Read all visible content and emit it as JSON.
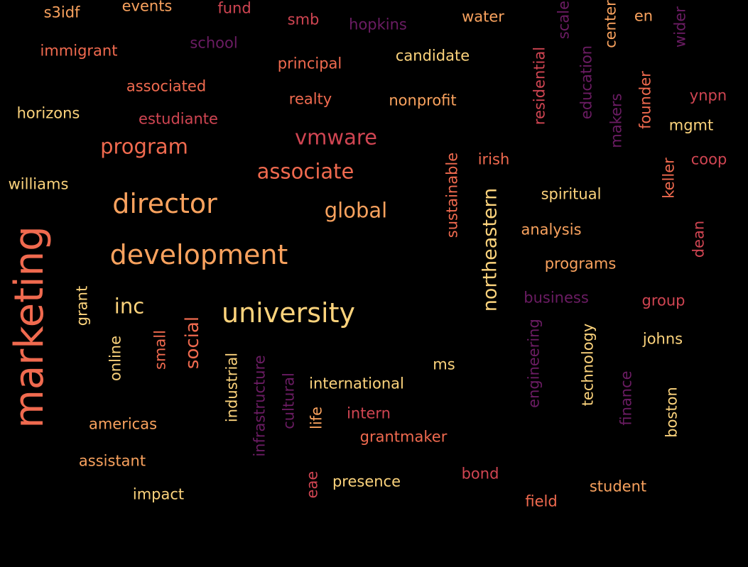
{
  "colors": {
    "background": "#000000",
    "c1": "#fcd37c",
    "c2": "#f9a25e",
    "c3": "#f06a4f",
    "c4": "#d04552",
    "c5": "#a12c5f",
    "c6": "#6b1c63"
  },
  "words": [
    {
      "text": "marketing",
      "color": "c3",
      "vertical": true
    },
    {
      "text": "development",
      "color": "c2",
      "vertical": false
    },
    {
      "text": "university",
      "color": "c1",
      "vertical": false
    },
    {
      "text": "director",
      "color": "c2",
      "vertical": false
    },
    {
      "text": "northeastern",
      "color": "c1",
      "vertical": true
    },
    {
      "text": "global",
      "color": "c2",
      "vertical": false
    },
    {
      "text": "associate",
      "color": "c3",
      "vertical": false
    },
    {
      "text": "program",
      "color": "c3",
      "vertical": false
    },
    {
      "text": "vmware",
      "color": "c4",
      "vertical": false
    },
    {
      "text": "inc",
      "color": "c1",
      "vertical": false
    },
    {
      "text": "social",
      "color": "c3",
      "vertical": true
    },
    {
      "text": "s3idf",
      "color": "c2",
      "vertical": false
    },
    {
      "text": "events",
      "color": "c2",
      "vertical": false
    },
    {
      "text": "fund",
      "color": "c4",
      "vertical": false
    },
    {
      "text": "smb",
      "color": "c4",
      "vertical": false
    },
    {
      "text": "hopkins",
      "color": "c6",
      "vertical": false
    },
    {
      "text": "water",
      "color": "c2",
      "vertical": false
    },
    {
      "text": "scale",
      "color": "c6",
      "vertical": true
    },
    {
      "text": "center",
      "color": "c2",
      "vertical": true
    },
    {
      "text": "en",
      "color": "c2",
      "vertical": false
    },
    {
      "text": "wider",
      "color": "c6",
      "vertical": true
    },
    {
      "text": "immigrant",
      "color": "c3",
      "vertical": false
    },
    {
      "text": "school",
      "color": "c6",
      "vertical": false
    },
    {
      "text": "principal",
      "color": "c3",
      "vertical": false
    },
    {
      "text": "candidate",
      "color": "c1",
      "vertical": false
    },
    {
      "text": "residential",
      "color": "c4",
      "vertical": true
    },
    {
      "text": "education",
      "color": "c6",
      "vertical": true
    },
    {
      "text": "founder",
      "color": "c3",
      "vertical": true
    },
    {
      "text": "ynpn",
      "color": "c4",
      "vertical": false
    },
    {
      "text": "associated",
      "color": "c3",
      "vertical": false
    },
    {
      "text": "realty",
      "color": "c3",
      "vertical": false
    },
    {
      "text": "nonprofit",
      "color": "c2",
      "vertical": false
    },
    {
      "text": "makers",
      "color": "c6",
      "vertical": true
    },
    {
      "text": "mgmt",
      "color": "c1",
      "vertical": false
    },
    {
      "text": "horizons",
      "color": "c1",
      "vertical": false
    },
    {
      "text": "estudiante",
      "color": "c4",
      "vertical": false
    },
    {
      "text": "sustainable",
      "color": "c3",
      "vertical": true
    },
    {
      "text": "irish",
      "color": "c3",
      "vertical": false
    },
    {
      "text": "coop",
      "color": "c4",
      "vertical": false
    },
    {
      "text": "keller",
      "color": "c3",
      "vertical": true
    },
    {
      "text": "williams",
      "color": "c1",
      "vertical": false
    },
    {
      "text": "spiritual",
      "color": "c1",
      "vertical": false
    },
    {
      "text": "analysis",
      "color": "c2",
      "vertical": false
    },
    {
      "text": "dean",
      "color": "c4",
      "vertical": true
    },
    {
      "text": "programs",
      "color": "c2",
      "vertical": false
    },
    {
      "text": "business",
      "color": "c6",
      "vertical": false
    },
    {
      "text": "group",
      "color": "c4",
      "vertical": false
    },
    {
      "text": "grant",
      "color": "c1",
      "vertical": true
    },
    {
      "text": "johns",
      "color": "c1",
      "vertical": false
    },
    {
      "text": "engineering",
      "color": "c6",
      "vertical": true
    },
    {
      "text": "technology",
      "color": "c1",
      "vertical": true
    },
    {
      "text": "online",
      "color": "c1",
      "vertical": true
    },
    {
      "text": "small",
      "color": "c3",
      "vertical": true
    },
    {
      "text": "industrial",
      "color": "c1",
      "vertical": true
    },
    {
      "text": "ms",
      "color": "c1",
      "vertical": false
    },
    {
      "text": "finance",
      "color": "c6",
      "vertical": true
    },
    {
      "text": "infrastructure",
      "color": "c6",
      "vertical": true
    },
    {
      "text": "cultural",
      "color": "c6",
      "vertical": true
    },
    {
      "text": "international",
      "color": "c1",
      "vertical": false
    },
    {
      "text": "boston",
      "color": "c1",
      "vertical": true
    },
    {
      "text": "life",
      "color": "c2",
      "vertical": true
    },
    {
      "text": "intern",
      "color": "c4",
      "vertical": false
    },
    {
      "text": "americas",
      "color": "c2",
      "vertical": false
    },
    {
      "text": "grantmaker",
      "color": "c3",
      "vertical": false
    },
    {
      "text": "assistant",
      "color": "c2",
      "vertical": false
    },
    {
      "text": "bond",
      "color": "c4",
      "vertical": false
    },
    {
      "text": "eae",
      "color": "c4",
      "vertical": true
    },
    {
      "text": "presence",
      "color": "c1",
      "vertical": false
    },
    {
      "text": "impact",
      "color": "c1",
      "vertical": false
    },
    {
      "text": "student",
      "color": "c2",
      "vertical": false
    },
    {
      "text": "field",
      "color": "c3",
      "vertical": false
    }
  ]
}
